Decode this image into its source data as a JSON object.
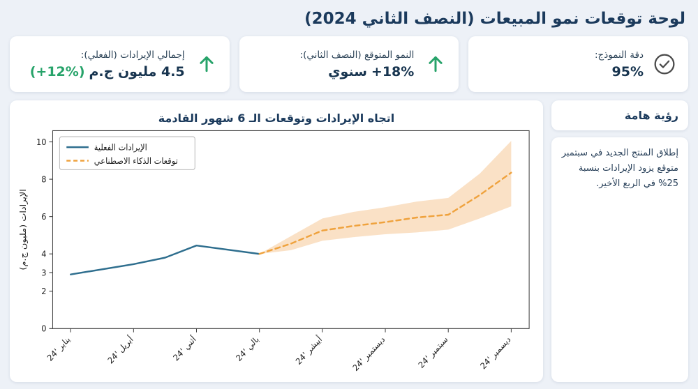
{
  "page": {
    "title": "لوحة توقعات نمو المبيعات (النصف الثاني 2024)"
  },
  "kpis": [
    {
      "id": "model-accuracy",
      "label": "دقة النموذج:",
      "value": "95%",
      "icon": "check-circle"
    },
    {
      "id": "expected-growth",
      "label": "النمو المتوقع (النصف الثاني):",
      "value": "+18%",
      "suffix": "سنوي",
      "icon": "arrow-up"
    },
    {
      "id": "total-revenue",
      "label": "إجمالي الإيرادات (الفعلي):",
      "value": "4.5 مليون ج.م",
      "delta": "(+12%)",
      "icon": "arrow-up"
    }
  ],
  "insight": {
    "title": "رؤية هامة",
    "text": "إطلاق المنتج الجديد في سبتمبر متوقع يزود الإيرادات بنسبة 25% في الربع الأخير."
  },
  "colors": {
    "accent_navy": "#1b3a5c",
    "accent_green": "#27a36a",
    "actual_line": "#2e6e8e",
    "forecast_line": "#efa23d",
    "band_fill": "#f3b877"
  },
  "chart_data": {
    "type": "line",
    "title": "اتجاه الإيرادات وتوقعات الـ 6 شهور القادمة",
    "ylabel": "الإيرادات (مليون ج.م)",
    "xlabel": "",
    "x_tick_labels": [
      "يناير '24",
      "أبريل '24",
      "أثني '24",
      "بالي '24",
      "أيبشر '24",
      "ديستمبر '24",
      "سبتمبر '24",
      "ديسمبر '24"
    ],
    "y_ticks": [
      0,
      2,
      3,
      4,
      6,
      8,
      10
    ],
    "ylim": [
      0,
      10.6
    ],
    "grid": false,
    "legend_position": "upper-left",
    "series": [
      {
        "name": "الإيرادات الفعلية",
        "style": "solid",
        "color": "#2e6e8e",
        "points": [
          [
            0,
            2.9
          ],
          [
            1,
            3.45
          ],
          [
            1.5,
            3.8
          ],
          [
            2,
            4.45
          ],
          [
            3,
            4.0
          ]
        ]
      },
      {
        "name": "توقعات الذكاء الاصطناعي",
        "style": "dashed",
        "color": "#efa23d",
        "points": [
          [
            3,
            4.0
          ],
          [
            3.5,
            4.55
          ],
          [
            4,
            5.25
          ],
          [
            4.5,
            5.5
          ],
          [
            5,
            5.7
          ],
          [
            5.5,
            5.95
          ],
          [
            6,
            6.1
          ],
          [
            6.5,
            7.15
          ],
          [
            7,
            8.35
          ]
        ]
      }
    ],
    "band": {
      "name": "forecast-confidence-band",
      "color": "#f3b877",
      "opacity": 0.42,
      "upper": [
        [
          3,
          4.0
        ],
        [
          3.5,
          4.95
        ],
        [
          4,
          5.9
        ],
        [
          4.5,
          6.25
        ],
        [
          5,
          6.5
        ],
        [
          5.5,
          6.8
        ],
        [
          6,
          7.0
        ],
        [
          6.5,
          8.3
        ],
        [
          7,
          10.05
        ]
      ],
      "lower": [
        [
          3,
          4.0
        ],
        [
          3.5,
          4.2
        ],
        [
          4,
          4.7
        ],
        [
          4.5,
          4.9
        ],
        [
          5,
          5.05
        ],
        [
          5.5,
          5.15
        ],
        [
          6,
          5.3
        ],
        [
          6.5,
          5.9
        ],
        [
          7,
          6.55
        ]
      ]
    }
  }
}
